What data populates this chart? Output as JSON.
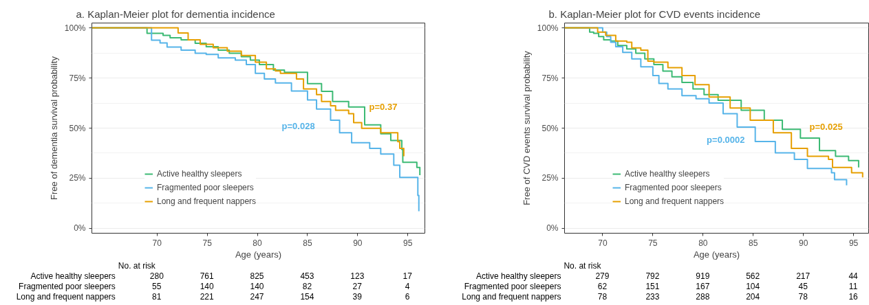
{
  "chart_data": [
    {
      "type": "step",
      "title": "a. Kaplan-Meier plot for dementia incidence",
      "xlabel": "Age (years)",
      "ylabel": "Free of dementia survival probability",
      "xlim": [
        63.5,
        96.7
      ],
      "xticks": [
        70,
        75,
        80,
        85,
        90,
        95
      ],
      "ylim": [
        -2.4,
        102.4
      ],
      "yticks": [
        {
          "value": 0,
          "label": "0%"
        },
        {
          "value": 25,
          "label": "25%"
        },
        {
          "value": 50,
          "label": "50%"
        },
        {
          "value": 75,
          "label": "75%"
        },
        {
          "value": 100,
          "label": "100%"
        }
      ],
      "grid": "y",
      "legend": "bottom left",
      "series": [
        {
          "name": "Active healthy sleepers",
          "color": "#3cba74",
          "x": [
            63.5,
            69.0,
            70.6,
            71.3,
            72.4,
            73.8,
            74.9,
            76.1,
            77.2,
            78.4,
            79.3,
            80.2,
            81.6,
            82.7,
            85.0,
            86.4,
            87.5,
            89.1,
            90.7,
            92.3,
            93.3,
            94.4,
            94.5,
            95.9,
            96.2
          ],
          "values": [
            100,
            97.3,
            96.2,
            95.0,
            94.0,
            92.3,
            90.6,
            88.9,
            87.3,
            85.6,
            83.9,
            81.7,
            78.9,
            77.8,
            72.2,
            68.3,
            63.3,
            60.5,
            51.6,
            47.2,
            43.8,
            39.4,
            33.0,
            30.4,
            26.5
          ]
        },
        {
          "name": "Fragmented poor sleepers",
          "color": "#56b4e9",
          "x": [
            63.5,
            69.45,
            70.3,
            71.0,
            72.4,
            73.8,
            74.9,
            76.1,
            77.8,
            78.9,
            79.8,
            80.7,
            81.8,
            83.4,
            85.0,
            85.9,
            87.3,
            88.2,
            89.4,
            91.2,
            92.3,
            93.6,
            94.2,
            96.0,
            96.1
          ],
          "values": [
            100,
            93.8,
            92.5,
            90.4,
            88.9,
            87.3,
            86.7,
            85.0,
            83.9,
            81.7,
            77.3,
            74.5,
            72.5,
            68.5,
            64.0,
            59.5,
            53.9,
            47.7,
            42.7,
            39.9,
            37.1,
            31.5,
            25.4,
            16.4,
            8.6
          ]
        },
        {
          "name": "Long and frequent nappers",
          "color": "#e69f00",
          "x": [
            63.5,
            72.1,
            73.1,
            74.3,
            75.6,
            77.0,
            78.4,
            79.8,
            80.9,
            81.8,
            82.3,
            83.9,
            84.6,
            85.9,
            86.4,
            87.3,
            87.8,
            89.1,
            89.6,
            90.4,
            92.3,
            94.0,
            94.2,
            94.6
          ],
          "values": [
            100,
            97.4,
            94.0,
            91.8,
            90.1,
            88.4,
            86.2,
            82.9,
            79.5,
            78.5,
            77.3,
            74.5,
            69.5,
            66.7,
            63.3,
            61.1,
            58.9,
            57.2,
            52.7,
            49.9,
            47.7,
            43.2,
            39.9,
            36.0
          ]
        }
      ],
      "annotations": [
        "p=0.028",
        "p=0.37",
        "No. at risk",
        "Active healthy sleepers",
        "280",
        "761",
        "825",
        "453",
        "123",
        "17",
        "Fragmented poor sleepers",
        "55",
        "140",
        "140",
        "82",
        "27",
        "4",
        "Long and frequent nappers",
        "81",
        "221",
        "247",
        "154",
        "39",
        "6"
      ]
    },
    {
      "type": "step",
      "title": "b. Kaplan-Meier plot for CVD events incidence",
      "xlabel": "Age (years)",
      "ylabel": "Free of CVD events survival probability",
      "xlim": [
        66.2,
        96.5
      ],
      "xticks": [
        70,
        75,
        80,
        85,
        90,
        95
      ],
      "ylim": [
        -2.4,
        102.4
      ],
      "yticks": [
        {
          "value": 0,
          "label": "0%"
        },
        {
          "value": 25,
          "label": "25%"
        },
        {
          "value": 50,
          "label": "50%"
        },
        {
          "value": 75,
          "label": "75%"
        },
        {
          "value": 100,
          "label": "100%"
        }
      ],
      "grid": "y",
      "legend": "bottom left",
      "series": [
        {
          "name": "Active healthy sleepers",
          "color": "#3cba74",
          "x": [
            66.2,
            68.7,
            69.1,
            69.6,
            70.1,
            70.8,
            71.5,
            72.4,
            73.3,
            74.2,
            75.1,
            76.0,
            76.9,
            77.9,
            79.0,
            80.1,
            81.5,
            83.8,
            86.1,
            87.9,
            89.7,
            91.6,
            93.2,
            94.5,
            95.5
          ],
          "values": [
            100,
            97.9,
            97.3,
            95.6,
            94.0,
            93.4,
            91.2,
            89.5,
            87.3,
            84.5,
            81.7,
            78.4,
            75.6,
            72.8,
            69.5,
            66.7,
            63.9,
            58.9,
            53.9,
            49.4,
            45.0,
            38.8,
            36.0,
            33.8,
            30.4
          ]
        },
        {
          "name": "Fragmented poor sleepers",
          "color": "#56b4e9",
          "x": [
            66.2,
            70.0,
            70.4,
            70.8,
            71.3,
            72.0,
            72.9,
            73.8,
            75.0,
            75.6,
            76.5,
            77.9,
            79.3,
            80.6,
            82.0,
            83.4,
            85.2,
            87.2,
            89.1,
            90.4,
            92.8,
            93.1,
            94.3
          ],
          "values": [
            100,
            97.9,
            95.6,
            92.8,
            90.6,
            87.8,
            84.5,
            80.6,
            76.2,
            72.3,
            69.5,
            66.2,
            64.6,
            62.5,
            57.2,
            50.5,
            43.3,
            37.7,
            34.4,
            29.9,
            27.7,
            24.3,
            21.5
          ]
        },
        {
          "name": "Long and frequent nappers",
          "color": "#e69f00",
          "x": [
            66.2,
            69.5,
            70.3,
            71.3,
            72.4,
            72.9,
            73.8,
            74.5,
            75.1,
            76.5,
            77.9,
            79.2,
            80.6,
            82.7,
            84.7,
            87.0,
            88.8,
            90.4,
            92.5,
            92.9,
            94.8,
            95.9
          ],
          "values": [
            100,
            97.9,
            96.2,
            93.4,
            92.8,
            90.0,
            88.9,
            83.4,
            82.9,
            80.1,
            76.2,
            71.7,
            65.5,
            60.0,
            53.9,
            47.7,
            39.9,
            36.0,
            34.4,
            30.4,
            27.7,
            25.4
          ]
        }
      ],
      "annotations": [
        "p=0.0002",
        "p=0.025",
        "No. at risk",
        "Active healthy sleepers",
        "279",
        "792",
        "919",
        "562",
        "217",
        "44",
        "Fragmented poor sleepers",
        "62",
        "151",
        "167",
        "104",
        "45",
        "11",
        "Long and frequent nappers",
        "78",
        "233",
        "288",
        "204",
        "78",
        "16"
      ]
    }
  ]
}
